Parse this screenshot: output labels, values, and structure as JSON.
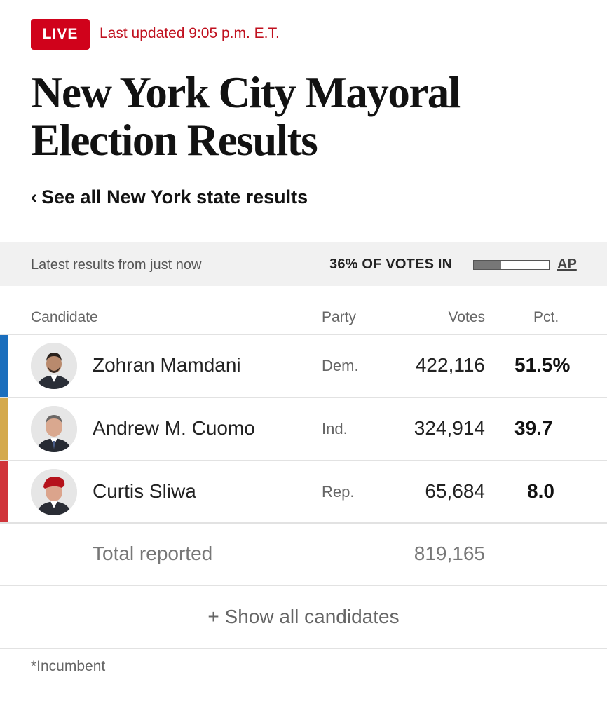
{
  "header": {
    "live_label": "LIVE",
    "updated": "Last updated 9:05 p.m. E.T.",
    "title_line1": "New York City Mayoral",
    "title_line2": "Election Results",
    "back_link": "See all New York state results"
  },
  "status": {
    "latest": "Latest results from just now",
    "votes_in": "36% OF VOTES IN",
    "votes_in_fraction": 0.36,
    "source": "AP"
  },
  "columns": {
    "candidate": "Candidate",
    "party": "Party",
    "votes": "Votes",
    "pct": "Pct."
  },
  "candidates": [
    {
      "name": "Zohran Mamdani",
      "party": "Dem.",
      "votes": "422,116",
      "pct": "51.5%",
      "color": "#1a6ebd"
    },
    {
      "name": "Andrew M. Cuomo",
      "party": "Ind.",
      "votes": "324,914",
      "pct": "39.7",
      "color": "#d4a94c"
    },
    {
      "name": "Curtis Sliwa",
      "party": "Rep.",
      "votes": "65,684",
      "pct": "8.0",
      "color": "#d0343a"
    }
  ],
  "total": {
    "label": "Total reported",
    "votes": "819,165"
  },
  "show_all": "+ Show all candidates",
  "footnote": "*Incumbent"
}
